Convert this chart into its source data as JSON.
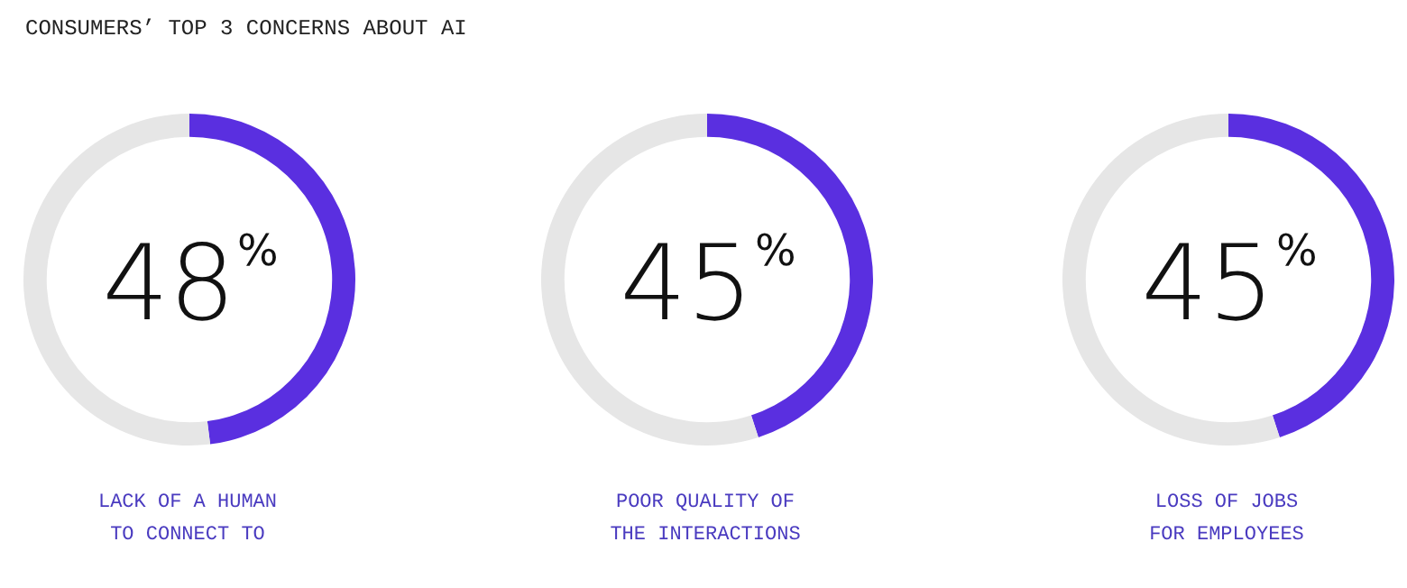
{
  "chart_data": [
    {
      "type": "donut",
      "title": "CONSUMERS’ TOP 3 CONCERNS ABOUT AI",
      "categories": [
        null,
        null
      ],
      "values": [
        48,
        52
      ],
      "colors": [
        "#5a2fe0",
        "#e6e6e6"
      ],
      "value_labels": [
        "48%",
        null
      ],
      "annotations": [
        "LACK OF A HUMAN TO CONNECT TO"
      ]
    },
    {
      "type": "donut",
      "categories": [
        null,
        null
      ],
      "values": [
        45,
        55
      ],
      "colors": [
        "#5a2fe0",
        "#e6e6e6"
      ],
      "value_labels": [
        "45%",
        null
      ],
      "annotations": [
        "POOR QUALITY OF THE INTERACTIONS"
      ]
    },
    {
      "type": "donut",
      "categories": [
        null,
        null
      ],
      "values": [
        45,
        55
      ],
      "colors": [
        "#5a2fe0",
        "#e6e6e6"
      ],
      "value_labels": [
        "45%",
        null
      ],
      "annotations": [
        "LOSS OF JOBS FOR EMPLOYEES"
      ]
    }
  ]
}
